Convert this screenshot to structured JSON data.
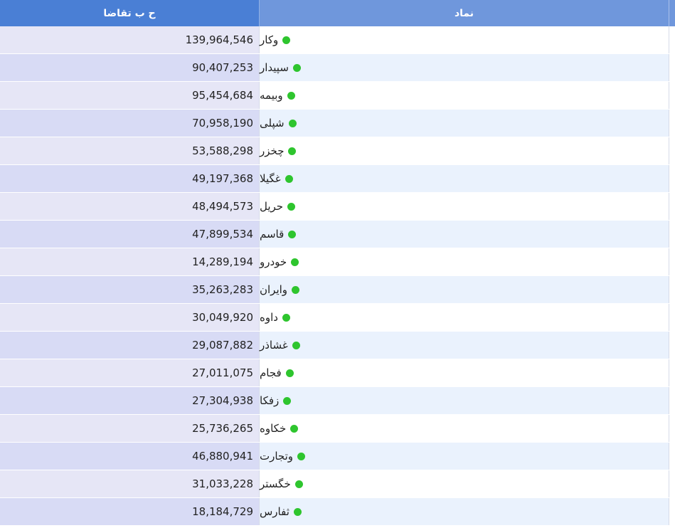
{
  "header": {
    "value_col": "ح ب تقاضا",
    "symbol_col": "نماد"
  },
  "colors": {
    "status_dot": "#2ec52e",
    "header_left": "#4a7fd5",
    "header_right": "#6f97dc"
  },
  "rows": [
    {
      "symbol": "وکار",
      "value": "139,964,546",
      "status_icon": "green-dot-icon"
    },
    {
      "symbol": "سپیدار",
      "value": "90,407,253",
      "status_icon": "green-dot-icon"
    },
    {
      "symbol": "وبیمه",
      "value": "95,454,684",
      "status_icon": "green-dot-icon"
    },
    {
      "symbol": "شپلی",
      "value": "70,958,190",
      "status_icon": "green-dot-icon"
    },
    {
      "symbol": "چخزر",
      "value": "53,588,298",
      "status_icon": "green-dot-icon"
    },
    {
      "symbol": "غگیلا",
      "value": "49,197,368",
      "status_icon": "green-dot-icon"
    },
    {
      "symbol": "حریل",
      "value": "48,494,573",
      "status_icon": "green-dot-icon"
    },
    {
      "symbol": "قاسم",
      "value": "47,899,534",
      "status_icon": "green-dot-icon"
    },
    {
      "symbol": "خودرو",
      "value": "14,289,194",
      "status_icon": "green-dot-icon"
    },
    {
      "symbol": "وایران",
      "value": "35,263,283",
      "status_icon": "green-dot-icon"
    },
    {
      "symbol": "داوه",
      "value": "30,049,920",
      "status_icon": "green-dot-icon"
    },
    {
      "symbol": "غشاذر",
      "value": "29,087,882",
      "status_icon": "green-dot-icon"
    },
    {
      "symbol": "فجام",
      "value": "27,011,075",
      "status_icon": "green-dot-icon"
    },
    {
      "symbol": "زفکا",
      "value": "27,304,938",
      "status_icon": "green-dot-icon"
    },
    {
      "symbol": "خکاوه",
      "value": "25,736,265",
      "status_icon": "green-dot-icon"
    },
    {
      "symbol": "وتجارت",
      "value": "46,880,941",
      "status_icon": "green-dot-icon"
    },
    {
      "symbol": "خگستر",
      "value": "31,033,228",
      "status_icon": "green-dot-icon"
    },
    {
      "symbol": "ثفارس",
      "value": "18,184,729",
      "status_icon": "green-dot-icon"
    }
  ]
}
